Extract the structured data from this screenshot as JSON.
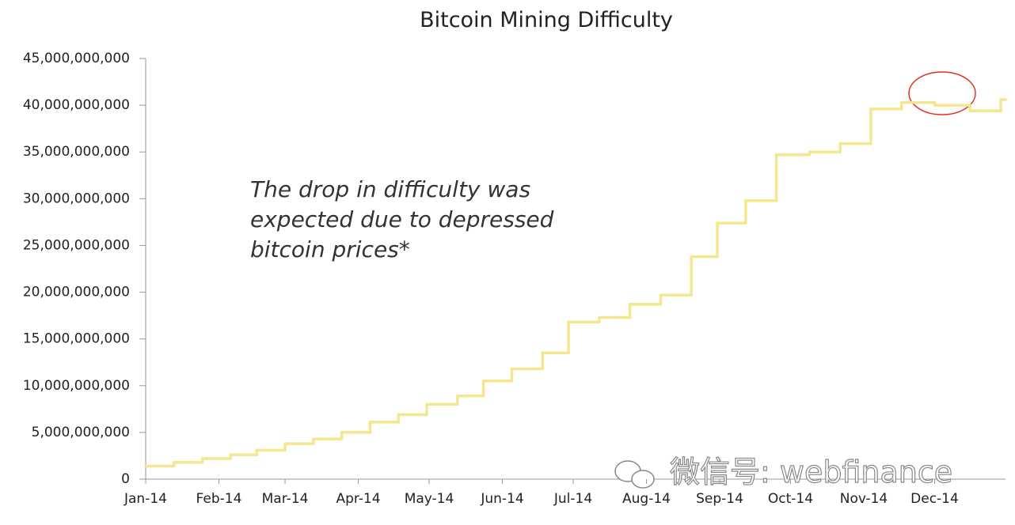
{
  "chart_data": {
    "type": "step-line",
    "title": "Bitcoin Mining Difficulty",
    "annotation": [
      "The drop in difficulty was",
      "expected due to depressed",
      "bitcoin prices*"
    ],
    "watermark": "微信号: webfinance",
    "x": [
      0,
      12,
      24,
      36,
      47,
      59,
      71,
      83,
      95,
      107,
      119,
      132,
      143,
      155,
      168,
      179,
      192,
      205,
      218,
      231,
      242,
      254,
      267,
      281,
      294,
      307,
      320,
      334,
      349,
      362
    ],
    "series": [
      {
        "name": "Difficulty",
        "color": "#f5e690",
        "values": [
          1400000000,
          1800000000,
          2200000000,
          2600000000,
          3100000000,
          3800000000,
          4300000000,
          5000000000,
          6100000000,
          6900000000,
          8000000000,
          8900000000,
          10500000000,
          11800000000,
          13500000000,
          16800000000,
          17300000000,
          18700000000,
          19700000000,
          23800000000,
          27400000000,
          29800000000,
          34700000000,
          35000000000,
          35900000000,
          39600000000,
          40300000000,
          40000000000,
          39400000000,
          40600000000
        ]
      }
    ],
    "xlim": [
      0,
      364
    ],
    "xticks": [
      {
        "value": 0,
        "label": "Jan-14"
      },
      {
        "value": 31,
        "label": "Feb-14"
      },
      {
        "value": 59,
        "label": "Mar-14"
      },
      {
        "value": 90,
        "label": "Apr-14"
      },
      {
        "value": 120,
        "label": "May-14"
      },
      {
        "value": 151,
        "label": "Jun-14"
      },
      {
        "value": 181,
        "label": "Jul-14"
      },
      {
        "value": 212,
        "label": "Aug-14"
      },
      {
        "value": 243,
        "label": "Sep-14"
      },
      {
        "value": 273,
        "label": "Oct-14"
      },
      {
        "value": 304,
        "label": "Nov-14"
      },
      {
        "value": 334,
        "label": "Dec-14"
      }
    ],
    "ylim": [
      0,
      45000000000
    ],
    "yticks": [
      0,
      {
        "value": 5000000000,
        "label": "5,000,000,000"
      },
      {
        "value": 10000000000,
        "label": "10,000,000,000"
      },
      {
        "value": 15000000000,
        "label": "15,000,000,000"
      },
      {
        "value": 20000000000,
        "label": "20,000,000,000"
      },
      {
        "value": 25000000000,
        "label": "25,000,000,000"
      },
      {
        "value": 30000000000,
        "label": "30,000,000,000"
      },
      {
        "value": 35000000000,
        "label": "35,000,000,000"
      },
      {
        "value": 40000000000,
        "label": "40,000,000,000"
      },
      {
        "value": 45000000000,
        "label": "45,000,000,000"
      }
    ]
  }
}
